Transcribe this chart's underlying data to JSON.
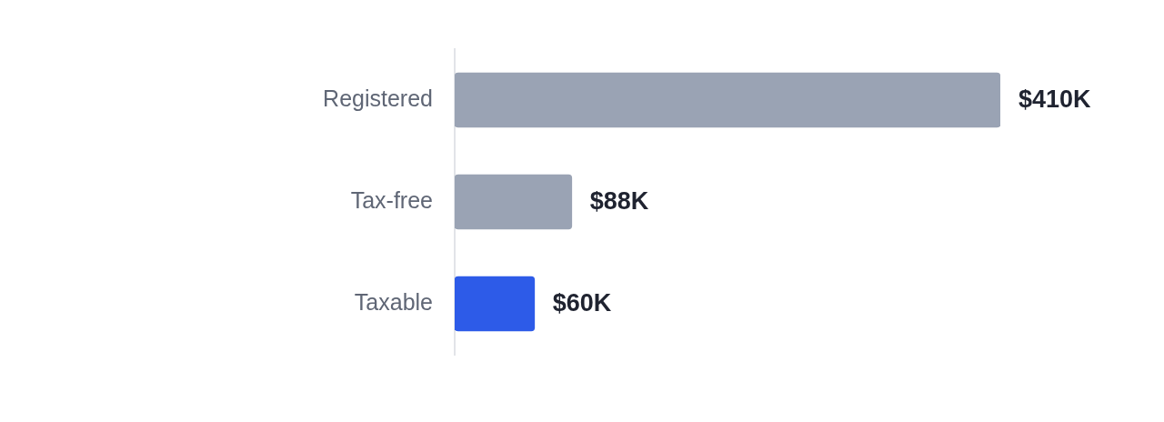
{
  "chart_data": {
    "type": "bar",
    "orientation": "horizontal",
    "categories": [
      "Registered",
      "Tax-free",
      "Taxable"
    ],
    "values": [
      410,
      88,
      60
    ],
    "colors": [
      "#9aa3b4",
      "#9aa3b4",
      "#2d5be8"
    ],
    "value_labels": [
      "$410K",
      "$88K",
      "$60K"
    ],
    "tick_labels": "y"
  }
}
